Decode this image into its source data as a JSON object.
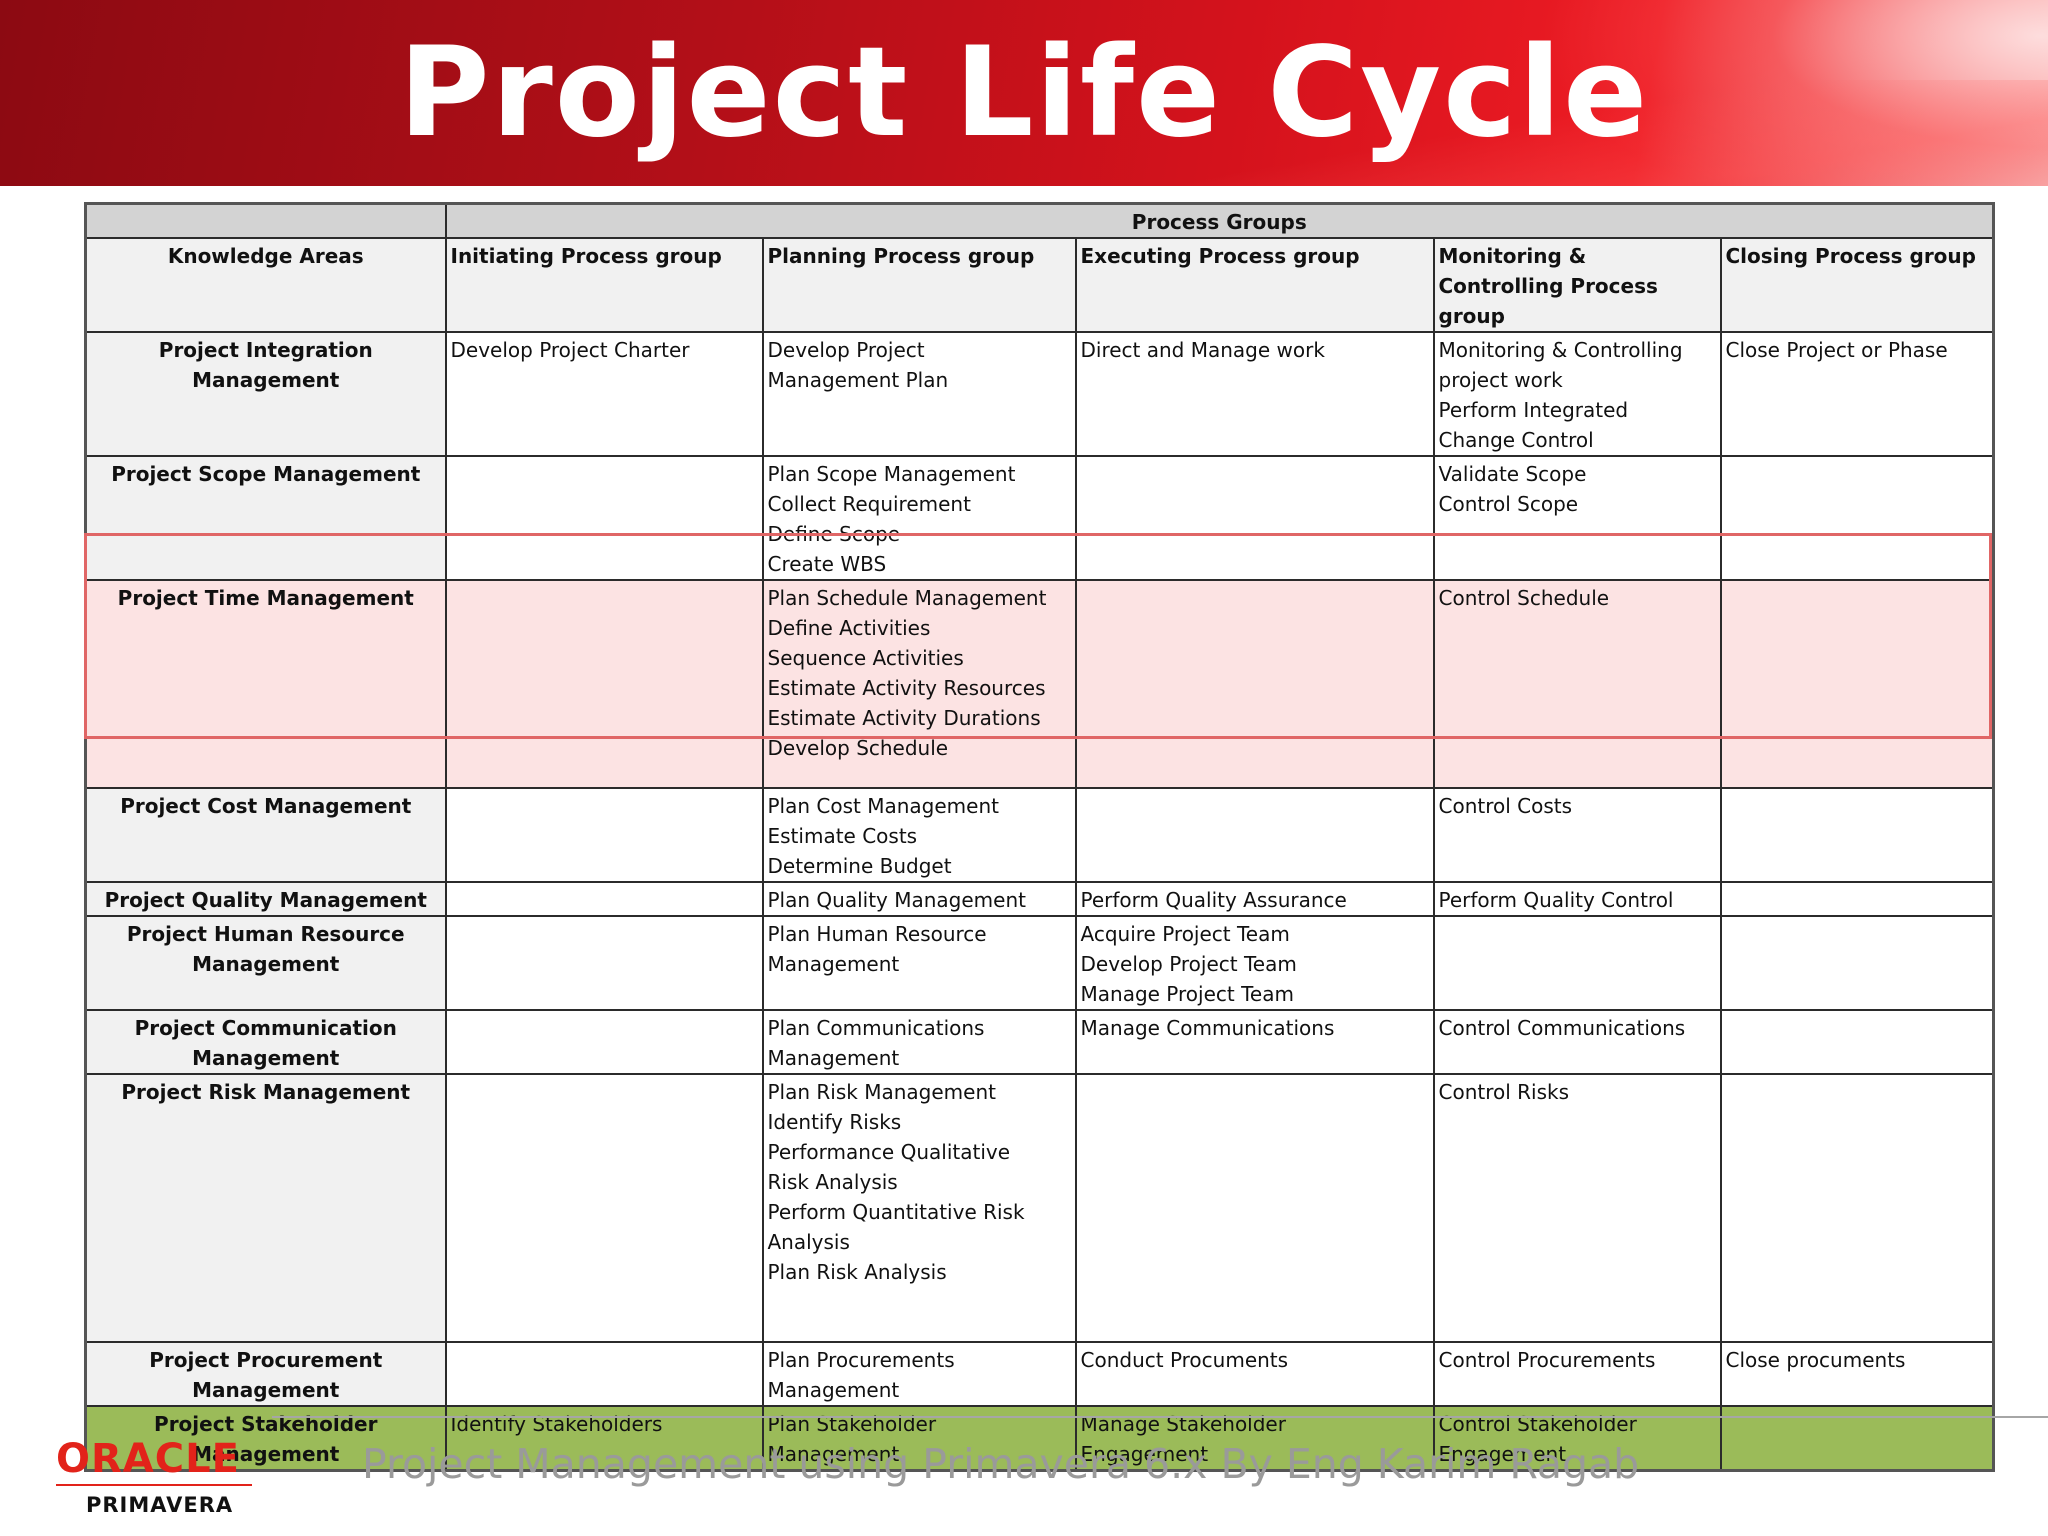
{
  "title": "Project Life Cycle",
  "table": {
    "process_groups_label": "Process Groups",
    "headers": {
      "knowledge_areas": "Knowledge Areas",
      "initiating": "Initiating Process group",
      "planning": "Planning Process group",
      "executing": "Executing Process group",
      "monitoring": "Monitoring & Controlling Process group",
      "closing": "Closing Process group"
    },
    "rows": [
      {
        "area": "Project Integration Management",
        "initiating": "Develop Project Charter",
        "planning": "Develop Project\nManagement Plan",
        "executing": "Direct and Manage work",
        "monitoring": "Monitoring & Controlling\nproject work\nPerform Integrated\nChange Control",
        "closing": "Close Project or Phase"
      },
      {
        "area": "Project Scope Management",
        "initiating": "",
        "planning": "Plan Scope Management\nCollect Requirement\nDefine Scope\nCreate WBS",
        "executing": "",
        "monitoring": "Validate Scope\nControl Scope",
        "closing": ""
      },
      {
        "area": "Project Time Management",
        "initiating": "",
        "planning": "Plan Schedule Management\nDefine Activities\nSequence Activities\nEstimate Activity Resources\nEstimate Activity Durations\nDevelop Schedule",
        "executing": "",
        "monitoring": "Control Schedule",
        "closing": ""
      },
      {
        "area": "Project Cost Management",
        "initiating": "",
        "planning": "Plan Cost Management\nEstimate Costs\nDetermine Budget",
        "executing": "",
        "monitoring": "Control Costs",
        "closing": ""
      },
      {
        "area": "Project Quality Management",
        "initiating": "",
        "planning": "Plan Quality Management",
        "executing": "Perform Quality Assurance",
        "monitoring": "Perform Quality Control",
        "closing": ""
      },
      {
        "area": "Project Human Resource\nManagement",
        "initiating": "",
        "planning": "Plan Human Resource\nManagement",
        "executing": "Acquire Project Team\nDevelop Project Team\nManage Project Team",
        "monitoring": "",
        "closing": ""
      },
      {
        "area": "Project Communication\nManagement",
        "initiating": "",
        "planning": "Plan Communications\nManagement",
        "executing": "Manage Communications",
        "monitoring": "Control Communications",
        "closing": ""
      },
      {
        "area": "Project Risk Management",
        "initiating": "",
        "planning": "Plan Risk Management\nIdentify Risks\nPerformance Qualitative\nRisk Analysis\nPerform Quantitative Risk\nAnalysis\nPlan Risk Analysis",
        "executing": "",
        "monitoring": "Control Risks",
        "closing": ""
      },
      {
        "area": "Project Procurement\nManagement",
        "initiating": "",
        "planning": "Plan Procurements\nManagement",
        "executing": "Conduct Procuments",
        "monitoring": "Control Procurements",
        "closing": "Close procuments"
      },
      {
        "area": "Project Stakeholder\nManagement",
        "initiating": "Identify Stakeholders",
        "planning": "Plan Stakeholder\nManagement",
        "executing": "Manage Stakeholder\nEngagement",
        "monitoring": "Control Stakeholder\nEngagement",
        "closing": ""
      }
    ]
  },
  "footer": {
    "logo_oracle": "ORACLE",
    "logo_primavera": "PRIMAVERA",
    "text": "Project Management using Primavera 6.x By Eng Karim Ragab"
  },
  "colors": {
    "banner_red": "#d4121c",
    "time_row_fill": "#fce3e3",
    "stakeholder_row_fill": "#9bbb59",
    "oracle_red": "#e2231a"
  }
}
